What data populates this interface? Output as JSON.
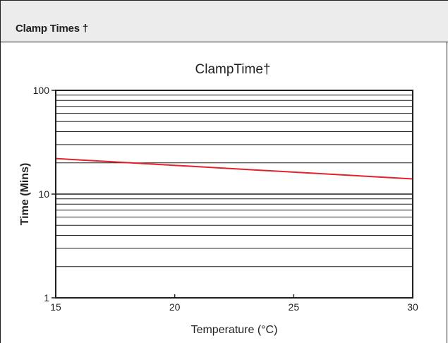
{
  "header": {
    "title": "Clamp Times †"
  },
  "chart_data": {
    "type": "line",
    "title": "ClampTime†",
    "xlabel": "Temperature (°C)",
    "ylabel": "Time (Mins)",
    "xlim": [
      15,
      30
    ],
    "ylim": [
      1,
      100
    ],
    "yscale": "log",
    "grid": true,
    "x_ticks": [
      15,
      20,
      25,
      30
    ],
    "y_ticks": [
      1,
      10,
      100
    ],
    "series": [
      {
        "x": [
          15,
          30
        ],
        "y": [
          22,
          14
        ],
        "color": "#e0232a"
      }
    ]
  }
}
